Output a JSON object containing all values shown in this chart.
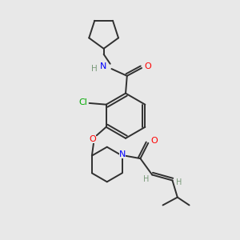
{
  "background_color": "#e8e8e8",
  "bond_color": "#303030",
  "atom_colors": {
    "N": "#0000ff",
    "O": "#ff0000",
    "Cl": "#00aa00",
    "H": "#7a9a7a",
    "C": "#303030"
  }
}
